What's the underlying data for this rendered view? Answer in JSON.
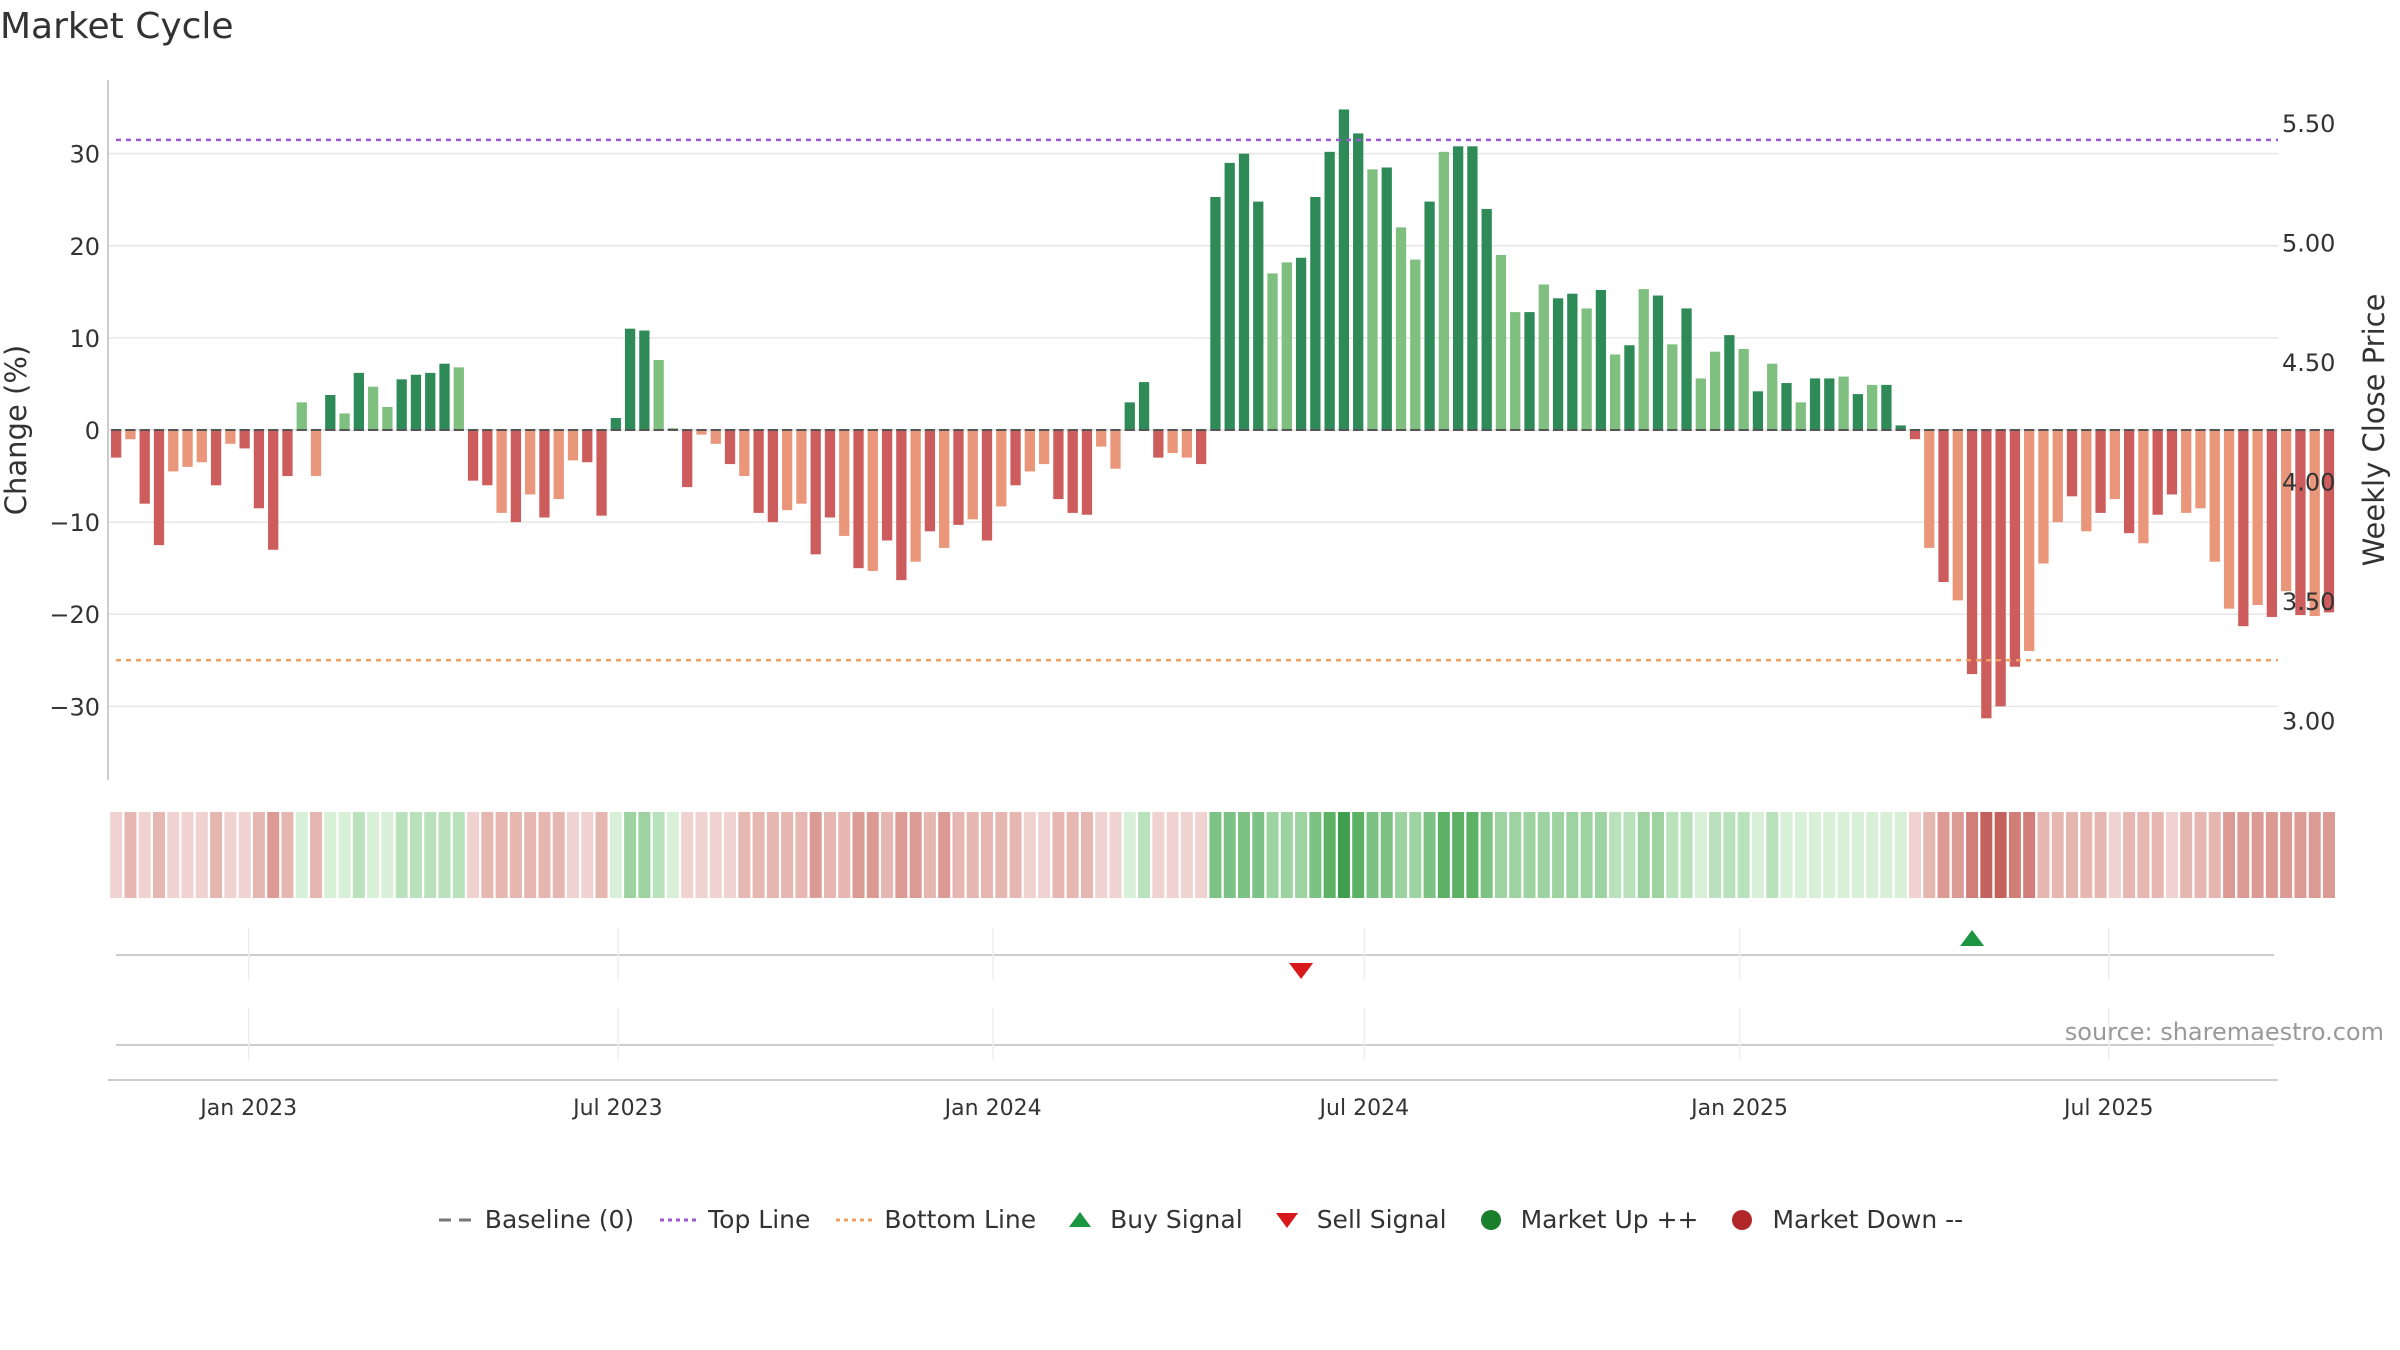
{
  "page_title": "Market Cycle",
  "source": "source: sharemaestro.com",
  "legend": [
    {
      "label": "Baseline (0)",
      "symbol": "dash-line",
      "color": "#777777"
    },
    {
      "label": "Top Line",
      "symbol": "dotted-line",
      "color": "#9b59d0"
    },
    {
      "label": "Bottom Line",
      "symbol": "dotted-line",
      "color": "#f0a060"
    },
    {
      "label": "Buy Signal",
      "symbol": "triangle-up",
      "color": "#1a9641"
    },
    {
      "label": "Sell Signal",
      "symbol": "triangle-down",
      "color": "#d7191c"
    },
    {
      "label": "Market Up ++",
      "symbol": "circle",
      "color": "#1a7f2a"
    },
    {
      "label": "Market Down --",
      "symbol": "circle",
      "color": "#b2282a"
    }
  ],
  "chart_data": {
    "type": "bar",
    "title": "Market Cycle",
    "ylabel": "Change (%)",
    "y2label": "Weekly Close Price",
    "ylim": [
      -38,
      38
    ],
    "y2lim": [
      2.75,
      5.68
    ],
    "yticks": [
      "−30",
      "−20",
      "−10",
      "0",
      "10",
      "20",
      "30"
    ],
    "y2ticks": [
      "3.00",
      "3.50",
      "4.00",
      "4.50",
      "5.00",
      "5.50"
    ],
    "xticks": [
      "Jan 2023",
      "Jul 2023",
      "Jan 2024",
      "Jul 2024",
      "Jan 2025",
      "Jul 2025"
    ],
    "top_line": 31.5,
    "bottom_line": -25,
    "baseline": 0,
    "grid": true,
    "legend_position": "bottom",
    "colors": {
      "up_strong": "#2e8b57",
      "up_weak": "#7fbf7f",
      "down_strong": "#cd5c5c",
      "down_weak": "#e9967a",
      "top_line": "#9b59d0",
      "bottom_line": "#f0a060"
    },
    "values": [
      -3,
      -1,
      -8,
      -12.5,
      -4.5,
      -4,
      -3.5,
      -6,
      -1.5,
      -2,
      -8.5,
      -13,
      -5,
      3,
      -5,
      3.8,
      1.8,
      6.2,
      4.7,
      2.5,
      5.5,
      6,
      6.2,
      7.2,
      6.8,
      -5.5,
      -6,
      -9,
      -10,
      -7,
      -9.5,
      -7.5,
      -3.3,
      -3.5,
      -9.3,
      1.3,
      11,
      10.8,
      7.6,
      0.2,
      -6.2,
      -0.5,
      -1.5,
      -3.7,
      -5,
      -9,
      -10,
      -8.7,
      -8,
      -13.5,
      -9.5,
      -11.5,
      -15,
      -15.3,
      -12,
      -16.3,
      -14.3,
      -11,
      -12.8,
      -10.3,
      -9.7,
      -12,
      -8.3,
      -6,
      -4.5,
      -3.7,
      -7.5,
      -9,
      -9.2,
      -1.8,
      -4.2,
      3,
      5.2,
      -3,
      -2.5,
      -3,
      -3.7,
      25.3,
      29,
      30,
      24.8,
      17,
      18.2,
      18.7,
      25.3,
      30.2,
      34.8,
      32.2,
      28.3,
      28.5,
      22,
      18.5,
      24.8,
      30.2,
      30.8,
      30.8,
      24,
      19,
      12.8,
      12.8,
      15.8,
      14.3,
      14.8,
      13.2,
      15.2,
      8.2,
      9.2,
      15.3,
      14.6,
      9.3,
      13.2,
      5.6,
      8.5,
      10.3,
      8.8,
      4.2,
      7.2,
      5.1,
      3,
      5.6,
      5.6,
      5.8,
      3.9,
      4.9,
      4.9,
      0.5,
      -1,
      -12.8,
      -16.5,
      -18.5,
      -26.5,
      -31.3,
      -30,
      -25.7,
      -24,
      -14.5,
      -10,
      -7.2,
      -11,
      -9,
      -7.5,
      -11.2,
      -12.3,
      -9.2,
      -7,
      -9,
      -8.5,
      -14.3,
      -19.4,
      -21.3,
      -19,
      -20.3,
      -17.5,
      -20.1,
      -20.2,
      -19.8
    ],
    "weak_indices": [
      1,
      4,
      5,
      6,
      8,
      13,
      14,
      16,
      18,
      19,
      24,
      27,
      29,
      31,
      32,
      38,
      39,
      41,
      42,
      44,
      47,
      48,
      51,
      53,
      56,
      58,
      60,
      62,
      64,
      65,
      69,
      70,
      74,
      75,
      81,
      82,
      88,
      90,
      91,
      93,
      97,
      98,
      100,
      103,
      105,
      107,
      109,
      111,
      112,
      114,
      116,
      118,
      121,
      123,
      127,
      129,
      134,
      135,
      136,
      138,
      140,
      142,
      145,
      146,
      147,
      148,
      150,
      152,
      154,
      156,
      157,
      159,
      163,
      164
    ],
    "heatmap_levels": [
      1,
      2,
      1,
      2,
      1,
      1,
      1,
      2,
      1,
      1,
      2,
      3,
      2,
      1,
      2,
      1,
      1,
      2,
      1,
      1,
      2,
      2,
      2,
      2,
      2,
      1,
      2,
      2,
      2,
      2,
      2,
      2,
      1,
      1,
      2,
      1,
      3,
      3,
      2,
      1,
      1,
      1,
      1,
      1,
      2,
      2,
      2,
      2,
      2,
      3,
      2,
      2,
      3,
      3,
      2,
      3,
      3,
      2,
      3,
      2,
      2,
      2,
      2,
      2,
      1,
      1,
      2,
      2,
      2,
      1,
      1,
      1,
      2,
      1,
      1,
      1,
      1,
      4,
      4,
      4,
      4,
      3,
      3,
      3,
      4,
      5,
      6,
      5,
      4,
      4,
      3,
      3,
      4,
      5,
      5,
      5,
      4,
      3,
      3,
      3,
      3,
      3,
      3,
      3,
      3,
      2,
      2,
      3,
      3,
      2,
      2,
      1,
      2,
      2,
      2,
      1,
      2,
      1,
      1,
      1,
      1,
      1,
      1,
      1,
      1,
      1,
      1,
      2,
      3,
      3,
      4,
      5,
      5,
      4,
      4,
      2,
      2,
      2,
      2,
      2,
      1,
      2,
      2,
      2,
      1,
      2,
      2,
      2,
      3,
      3,
      3,
      3,
      3,
      3,
      3,
      3
    ],
    "buy_signals": [
      "2025-04-25"
    ],
    "sell_signals": [
      "2024-05-31"
    ],
    "start_date": "2022-10-28",
    "x_domain": [
      "2022-10-24",
      "2025-09-22"
    ]
  }
}
